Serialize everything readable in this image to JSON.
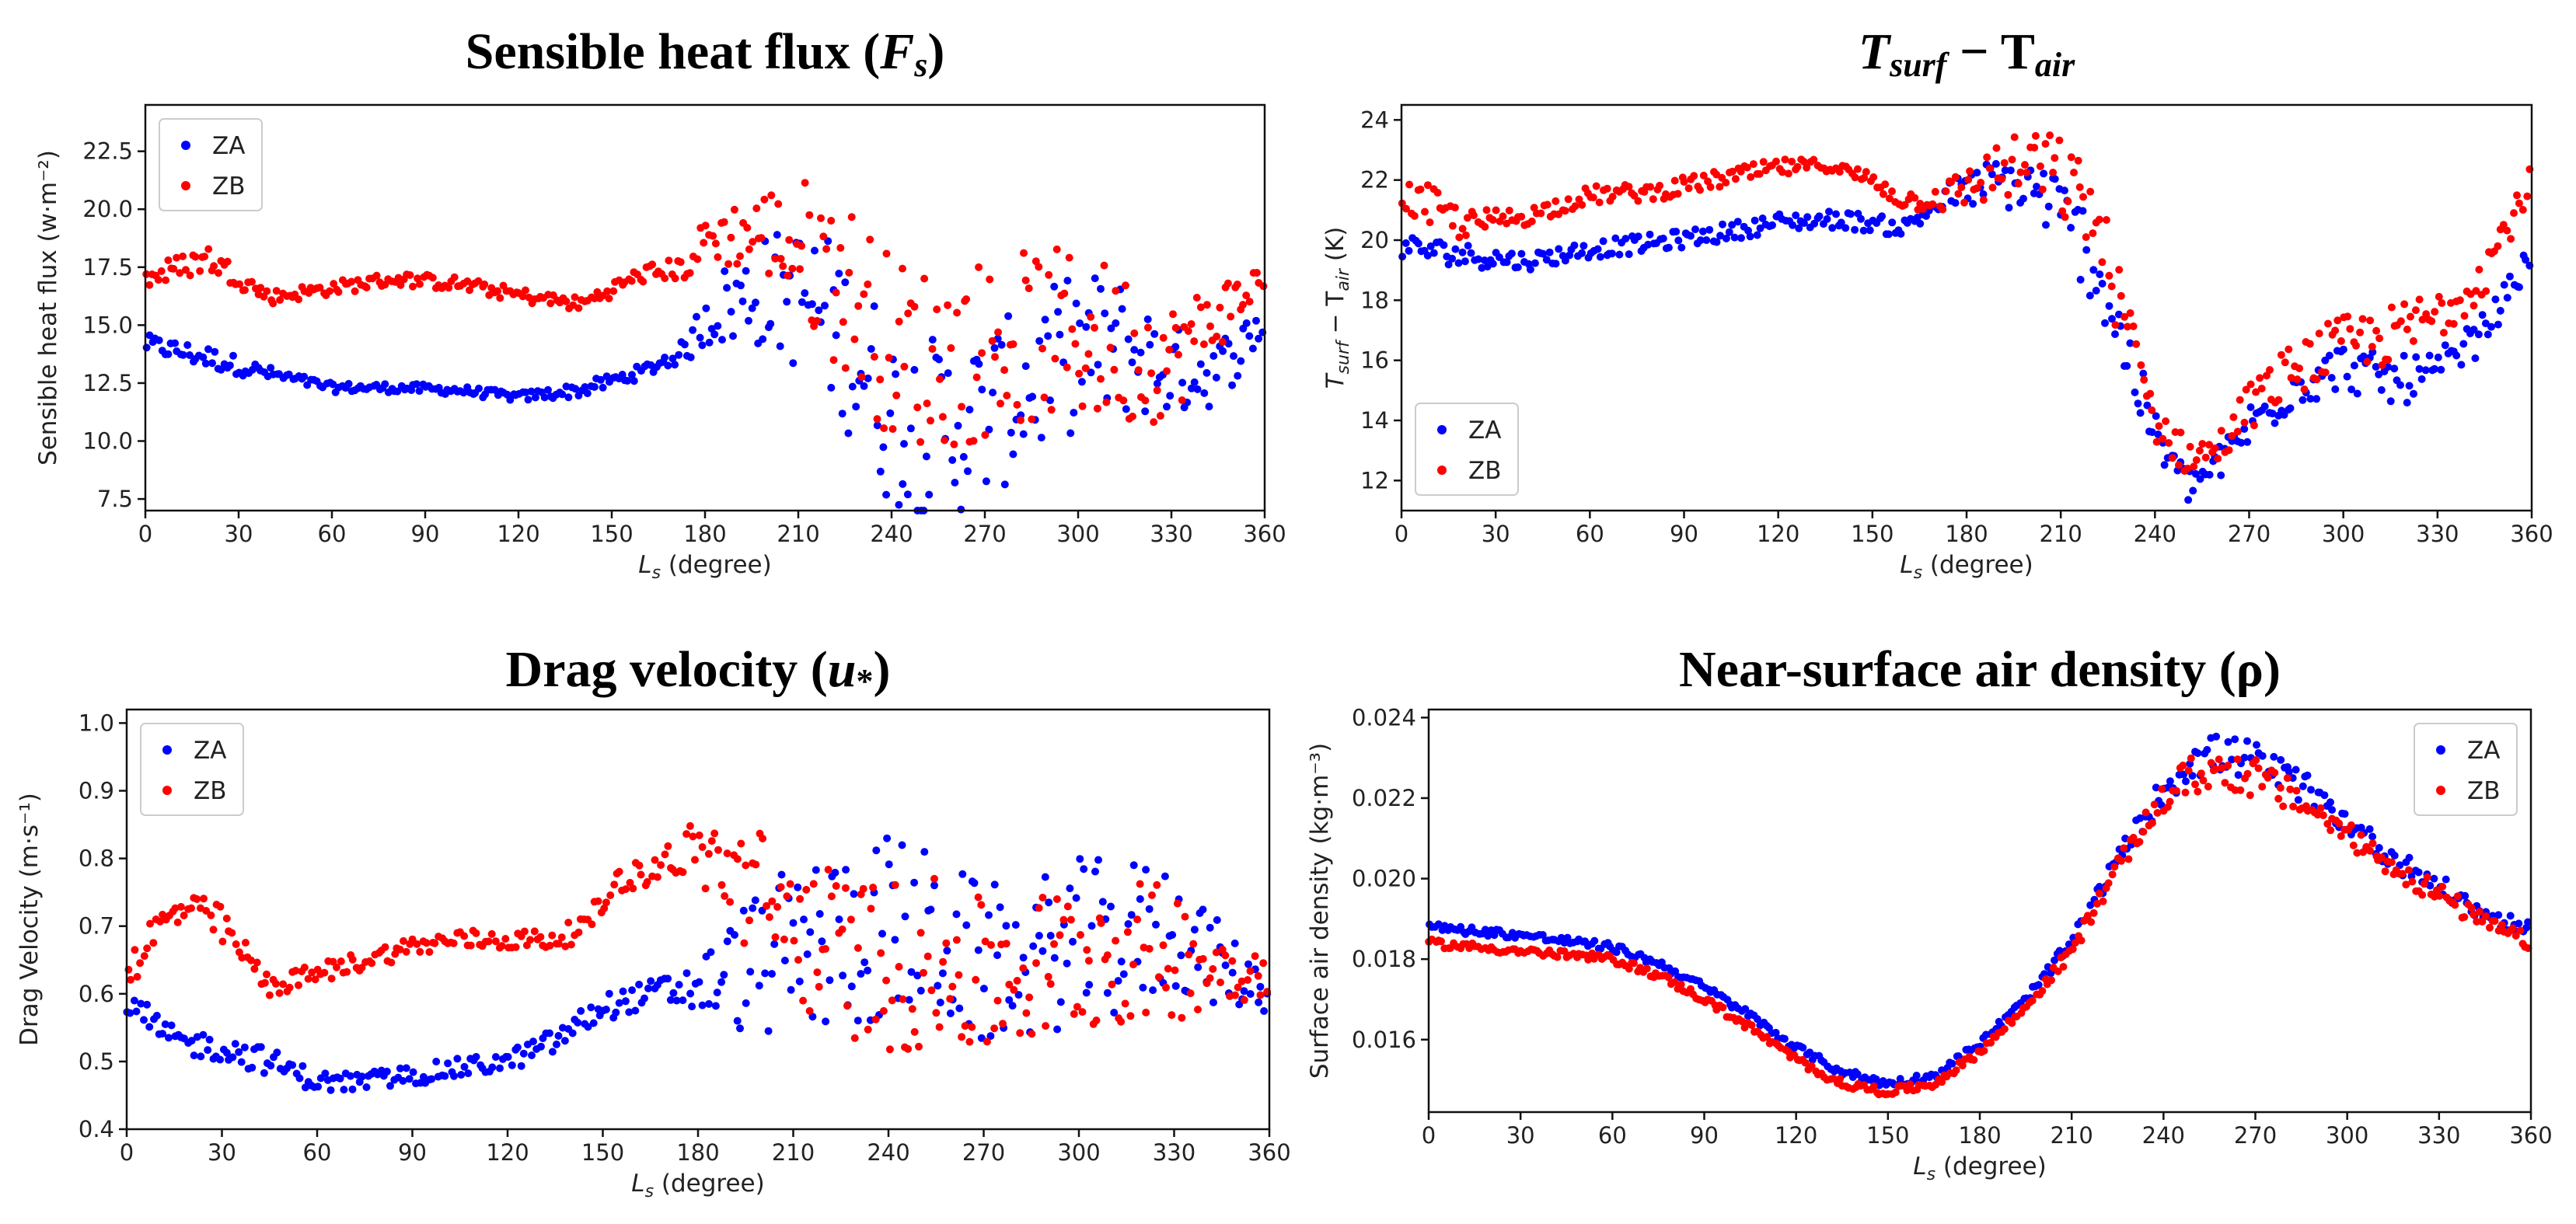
{
  "chart_data": [
    {
      "type": "scatter",
      "title": "Sensible heat flux (F",
      "title_sub": "s",
      "title_end": ")",
      "xlabel": "L",
      "xlabel_sub": "s",
      "xlabel_end": " (degree)",
      "ylabel": "Sensible heat flux (w·m⁻²)",
      "xlim": [
        0,
        360
      ],
      "ylim": [
        7,
        24.5
      ],
      "xticks": [
        0,
        30,
        60,
        90,
        120,
        150,
        180,
        210,
        240,
        270,
        300,
        330,
        360
      ],
      "yticks": [
        7.5,
        10.0,
        12.5,
        15.0,
        17.5,
        20.0,
        22.5
      ],
      "ytick_labels": [
        "7.5",
        "10.0",
        "12.5",
        "15.0",
        "17.5",
        "20.0",
        "22.5"
      ],
      "legend_position": "upper-left",
      "series": [
        {
          "name": "ZA",
          "color": "#0000ff",
          "x": [
            0,
            20,
            40,
            60,
            80,
            100,
            120,
            140,
            160,
            175,
            180,
            200,
            215,
            230,
            240,
            255,
            270,
            285,
            300,
            315,
            330,
            345,
            360
          ],
          "y": [
            14.2,
            13.6,
            12.9,
            12.3,
            12.3,
            12.2,
            11.9,
            12.2,
            13.0,
            14.0,
            15.5,
            16.5,
            16.0,
            13.5,
            11.0,
            10.5,
            11.0,
            12.5,
            14.0,
            14.0,
            13.0,
            13.0,
            15.2
          ],
          "spread": [
            0.4,
            0.5,
            0.3,
            0.2,
            0.2,
            0.2,
            0.2,
            0.3,
            0.3,
            0.5,
            1.5,
            2.5,
            3.5,
            4.0,
            4.0,
            4.0,
            3.8,
            3.5,
            3.5,
            3.0,
            2.0,
            1.5,
            0.8
          ]
        },
        {
          "name": "ZB",
          "color": "#ff0000",
          "x": [
            0,
            20,
            40,
            60,
            80,
            100,
            120,
            140,
            160,
            175,
            180,
            200,
            215,
            230,
            240,
            255,
            270,
            285,
            300,
            315,
            330,
            345,
            360
          ],
          "y": [
            17.0,
            17.9,
            16.2,
            16.6,
            17.0,
            16.8,
            16.3,
            15.9,
            17.2,
            17.5,
            18.8,
            19.0,
            18.0,
            16.0,
            14.0,
            13.5,
            14.0,
            14.5,
            14.5,
            14.0,
            13.5,
            15.5,
            17.0
          ],
          "spread": [
            0.5,
            0.6,
            0.3,
            0.3,
            0.3,
            0.3,
            0.3,
            0.3,
            0.4,
            0.5,
            1.0,
            2.0,
            3.5,
            4.0,
            4.0,
            4.0,
            4.0,
            3.8,
            3.8,
            3.5,
            2.5,
            1.5,
            0.8
          ]
        }
      ]
    },
    {
      "type": "scatter",
      "title": "T",
      "title_sub": "surf",
      "title_mid": " − T",
      "title_sub2": "air",
      "xlabel": "L",
      "xlabel_sub": "s",
      "xlabel_end": " (degree)",
      "ylabel": "T",
      "ylabel_sub": "surf",
      "ylabel_mid": " − T",
      "ylabel_sub2": "air",
      "ylabel_end": " (K)",
      "xlim": [
        0,
        360
      ],
      "ylim": [
        11,
        24.5
      ],
      "xticks": [
        0,
        30,
        60,
        90,
        120,
        150,
        180,
        210,
        240,
        270,
        300,
        330,
        360
      ],
      "yticks": [
        12,
        14,
        16,
        18,
        20,
        22,
        24
      ],
      "ytick_labels": [
        "12",
        "14",
        "16",
        "18",
        "20",
        "22",
        "24"
      ],
      "legend_position": "lower-left",
      "series": [
        {
          "name": "ZA",
          "color": "#0000ff",
          "x": [
            0,
            20,
            40,
            60,
            80,
            100,
            120,
            140,
            160,
            175,
            190,
            205,
            220,
            230,
            240,
            250,
            260,
            270,
            285,
            300,
            315,
            330,
            345,
            360
          ],
          "y": [
            19.8,
            19.5,
            19.3,
            19.7,
            19.9,
            20.2,
            20.6,
            20.7,
            20.4,
            21.5,
            22.0,
            21.5,
            19.5,
            16.5,
            13.5,
            11.8,
            12.5,
            13.8,
            15.2,
            15.8,
            15.3,
            15.5,
            17.0,
            19.5
          ],
          "spread": [
            0.4,
            0.4,
            0.3,
            0.3,
            0.3,
            0.3,
            0.3,
            0.3,
            0.3,
            0.5,
            0.8,
            1.2,
            1.5,
            1.2,
            0.8,
            0.6,
            0.6,
            0.8,
            0.8,
            0.8,
            0.8,
            0.8,
            0.6,
            0.4
          ]
        },
        {
          "name": "ZB",
          "color": "#ff0000",
          "x": [
            0,
            10,
            20,
            40,
            60,
            80,
            100,
            120,
            135,
            150,
            160,
            175,
            190,
            205,
            220,
            230,
            240,
            250,
            260,
            270,
            285,
            300,
            315,
            330,
            345,
            360
          ],
          "y": [
            21.5,
            21.0,
            20.5,
            20.8,
            21.5,
            21.6,
            22.0,
            22.4,
            22.5,
            22.0,
            21.3,
            21.5,
            22.3,
            22.5,
            21.0,
            17.5,
            14.0,
            12.8,
            13.0,
            14.5,
            15.8,
            16.5,
            16.8,
            17.5,
            19.0,
            22.0
          ],
          "spread": [
            0.5,
            0.8,
            0.5,
            0.3,
            0.3,
            0.3,
            0.3,
            0.3,
            0.2,
            0.3,
            0.3,
            0.6,
            1.0,
            1.3,
            1.5,
            1.2,
            0.8,
            0.6,
            0.6,
            0.8,
            0.9,
            1.0,
            1.0,
            1.0,
            0.8,
            0.5
          ]
        }
      ]
    },
    {
      "type": "scatter",
      "title": "Drag velocity  (u",
      "title_sub": "*",
      "title_end": ")",
      "xlabel": "L",
      "xlabel_sub": "s",
      "xlabel_end": " (degree)",
      "ylabel": "Drag Velocity (m·s⁻¹)",
      "xlim": [
        0,
        360
      ],
      "ylim": [
        0.4,
        1.02
      ],
      "xticks": [
        0,
        30,
        60,
        90,
        120,
        150,
        180,
        210,
        240,
        270,
        300,
        330,
        360
      ],
      "yticks": [
        0.4,
        0.5,
        0.6,
        0.7,
        0.8,
        0.9,
        1.0
      ],
      "ytick_labels": [
        "0.4",
        "0.5",
        "0.6",
        "0.7",
        "0.8",
        "0.9",
        "1.0"
      ],
      "legend_position": "upper-left",
      "series": [
        {
          "name": "ZA",
          "color": "#0000ff",
          "x": [
            0,
            15,
            30,
            45,
            60,
            75,
            90,
            105,
            120,
            135,
            150,
            165,
            180,
            195,
            210,
            225,
            240,
            255,
            270,
            285,
            300,
            315,
            330,
            345,
            360
          ],
          "y": [
            0.58,
            0.53,
            0.52,
            0.5,
            0.47,
            0.47,
            0.48,
            0.49,
            0.5,
            0.53,
            0.58,
            0.6,
            0.61,
            0.64,
            0.66,
            0.68,
            0.7,
            0.68,
            0.64,
            0.65,
            0.68,
            0.68,
            0.7,
            0.64,
            0.6
          ],
          "spread": [
            0.03,
            0.02,
            0.02,
            0.02,
            0.015,
            0.015,
            0.015,
            0.015,
            0.015,
            0.02,
            0.02,
            0.02,
            0.04,
            0.1,
            0.13,
            0.14,
            0.14,
            0.13,
            0.12,
            0.12,
            0.12,
            0.12,
            0.1,
            0.06,
            0.03
          ]
        },
        {
          "name": "ZB",
          "color": "#ff0000",
          "x": [
            0,
            10,
            20,
            30,
            45,
            60,
            75,
            90,
            105,
            120,
            135,
            145,
            155,
            165,
            175,
            185,
            195,
            210,
            225,
            240,
            255,
            270,
            285,
            300,
            315,
            330,
            345,
            360
          ],
          "y": [
            0.63,
            0.7,
            0.73,
            0.7,
            0.61,
            0.63,
            0.65,
            0.67,
            0.68,
            0.68,
            0.68,
            0.7,
            0.77,
            0.78,
            0.81,
            0.8,
            0.76,
            0.7,
            0.66,
            0.64,
            0.64,
            0.62,
            0.63,
            0.66,
            0.66,
            0.66,
            0.64,
            0.63
          ],
          "spread": [
            0.03,
            0.03,
            0.02,
            0.03,
            0.015,
            0.015,
            0.015,
            0.015,
            0.015,
            0.015,
            0.015,
            0.02,
            0.02,
            0.02,
            0.04,
            0.06,
            0.1,
            0.12,
            0.12,
            0.13,
            0.13,
            0.12,
            0.12,
            0.12,
            0.11,
            0.1,
            0.06,
            0.03
          ]
        }
      ]
    },
    {
      "type": "scatter",
      "title": "Near-surface air density  (ρ)",
      "xlabel": "L",
      "xlabel_sub": "s",
      "xlabel_end": " (degree)",
      "ylabel": "Surface air density (kg·m⁻³)",
      "xlim": [
        0,
        360
      ],
      "ylim": [
        0.0142,
        0.0242
      ],
      "xticks": [
        0,
        30,
        60,
        90,
        120,
        150,
        180,
        210,
        240,
        270,
        300,
        330,
        360
      ],
      "yticks": [
        0.016,
        0.018,
        0.02,
        0.022,
        0.024
      ],
      "ytick_labels": [
        "0.016",
        "0.018",
        "0.020",
        "0.022",
        "0.024"
      ],
      "legend_position": "upper-right",
      "series": [
        {
          "name": "ZA",
          "color": "#0000ff",
          "x": [
            0,
            30,
            60,
            75,
            90,
            105,
            120,
            135,
            150,
            165,
            180,
            195,
            210,
            225,
            240,
            250,
            260,
            270,
            285,
            300,
            315,
            330,
            345,
            360
          ],
          "y": [
            0.0188,
            0.0186,
            0.0183,
            0.0179,
            0.0173,
            0.0166,
            0.0158,
            0.0152,
            0.0149,
            0.0151,
            0.0159,
            0.017,
            0.0184,
            0.0205,
            0.0222,
            0.023,
            0.0231,
            0.0229,
            0.0223,
            0.0214,
            0.0205,
            0.0198,
            0.0191,
            0.0187
          ],
          "spread": [
            0.0001,
            0.0001,
            0.0001,
            0.0001,
            0.0001,
            0.0001,
            0.0001,
            0.0001,
            0.0001,
            0.0001,
            0.0001,
            0.0001,
            0.0002,
            0.0002,
            0.0004,
            0.0005,
            0.0005,
            0.0005,
            0.0004,
            0.0003,
            0.0003,
            0.0003,
            0.0002,
            0.0002
          ]
        },
        {
          "name": "ZB",
          "color": "#ff0000",
          "x": [
            0,
            30,
            60,
            75,
            90,
            105,
            120,
            135,
            150,
            165,
            180,
            195,
            210,
            225,
            240,
            250,
            260,
            270,
            285,
            300,
            315,
            330,
            345,
            360
          ],
          "y": [
            0.0184,
            0.0182,
            0.018,
            0.0176,
            0.017,
            0.0163,
            0.0155,
            0.0149,
            0.0147,
            0.0149,
            0.0157,
            0.0168,
            0.0182,
            0.0203,
            0.022,
            0.0226,
            0.0227,
            0.0225,
            0.0219,
            0.0211,
            0.0203,
            0.0196,
            0.0189,
            0.0184
          ],
          "spread": [
            0.0001,
            0.0001,
            0.0001,
            0.0001,
            0.0001,
            0.0001,
            0.0001,
            0.0001,
            0.0001,
            0.0001,
            0.0001,
            0.0001,
            0.0002,
            0.0002,
            0.0004,
            0.0005,
            0.0005,
            0.0005,
            0.0004,
            0.0003,
            0.0003,
            0.0003,
            0.0002,
            0.0002
          ]
        }
      ]
    }
  ]
}
